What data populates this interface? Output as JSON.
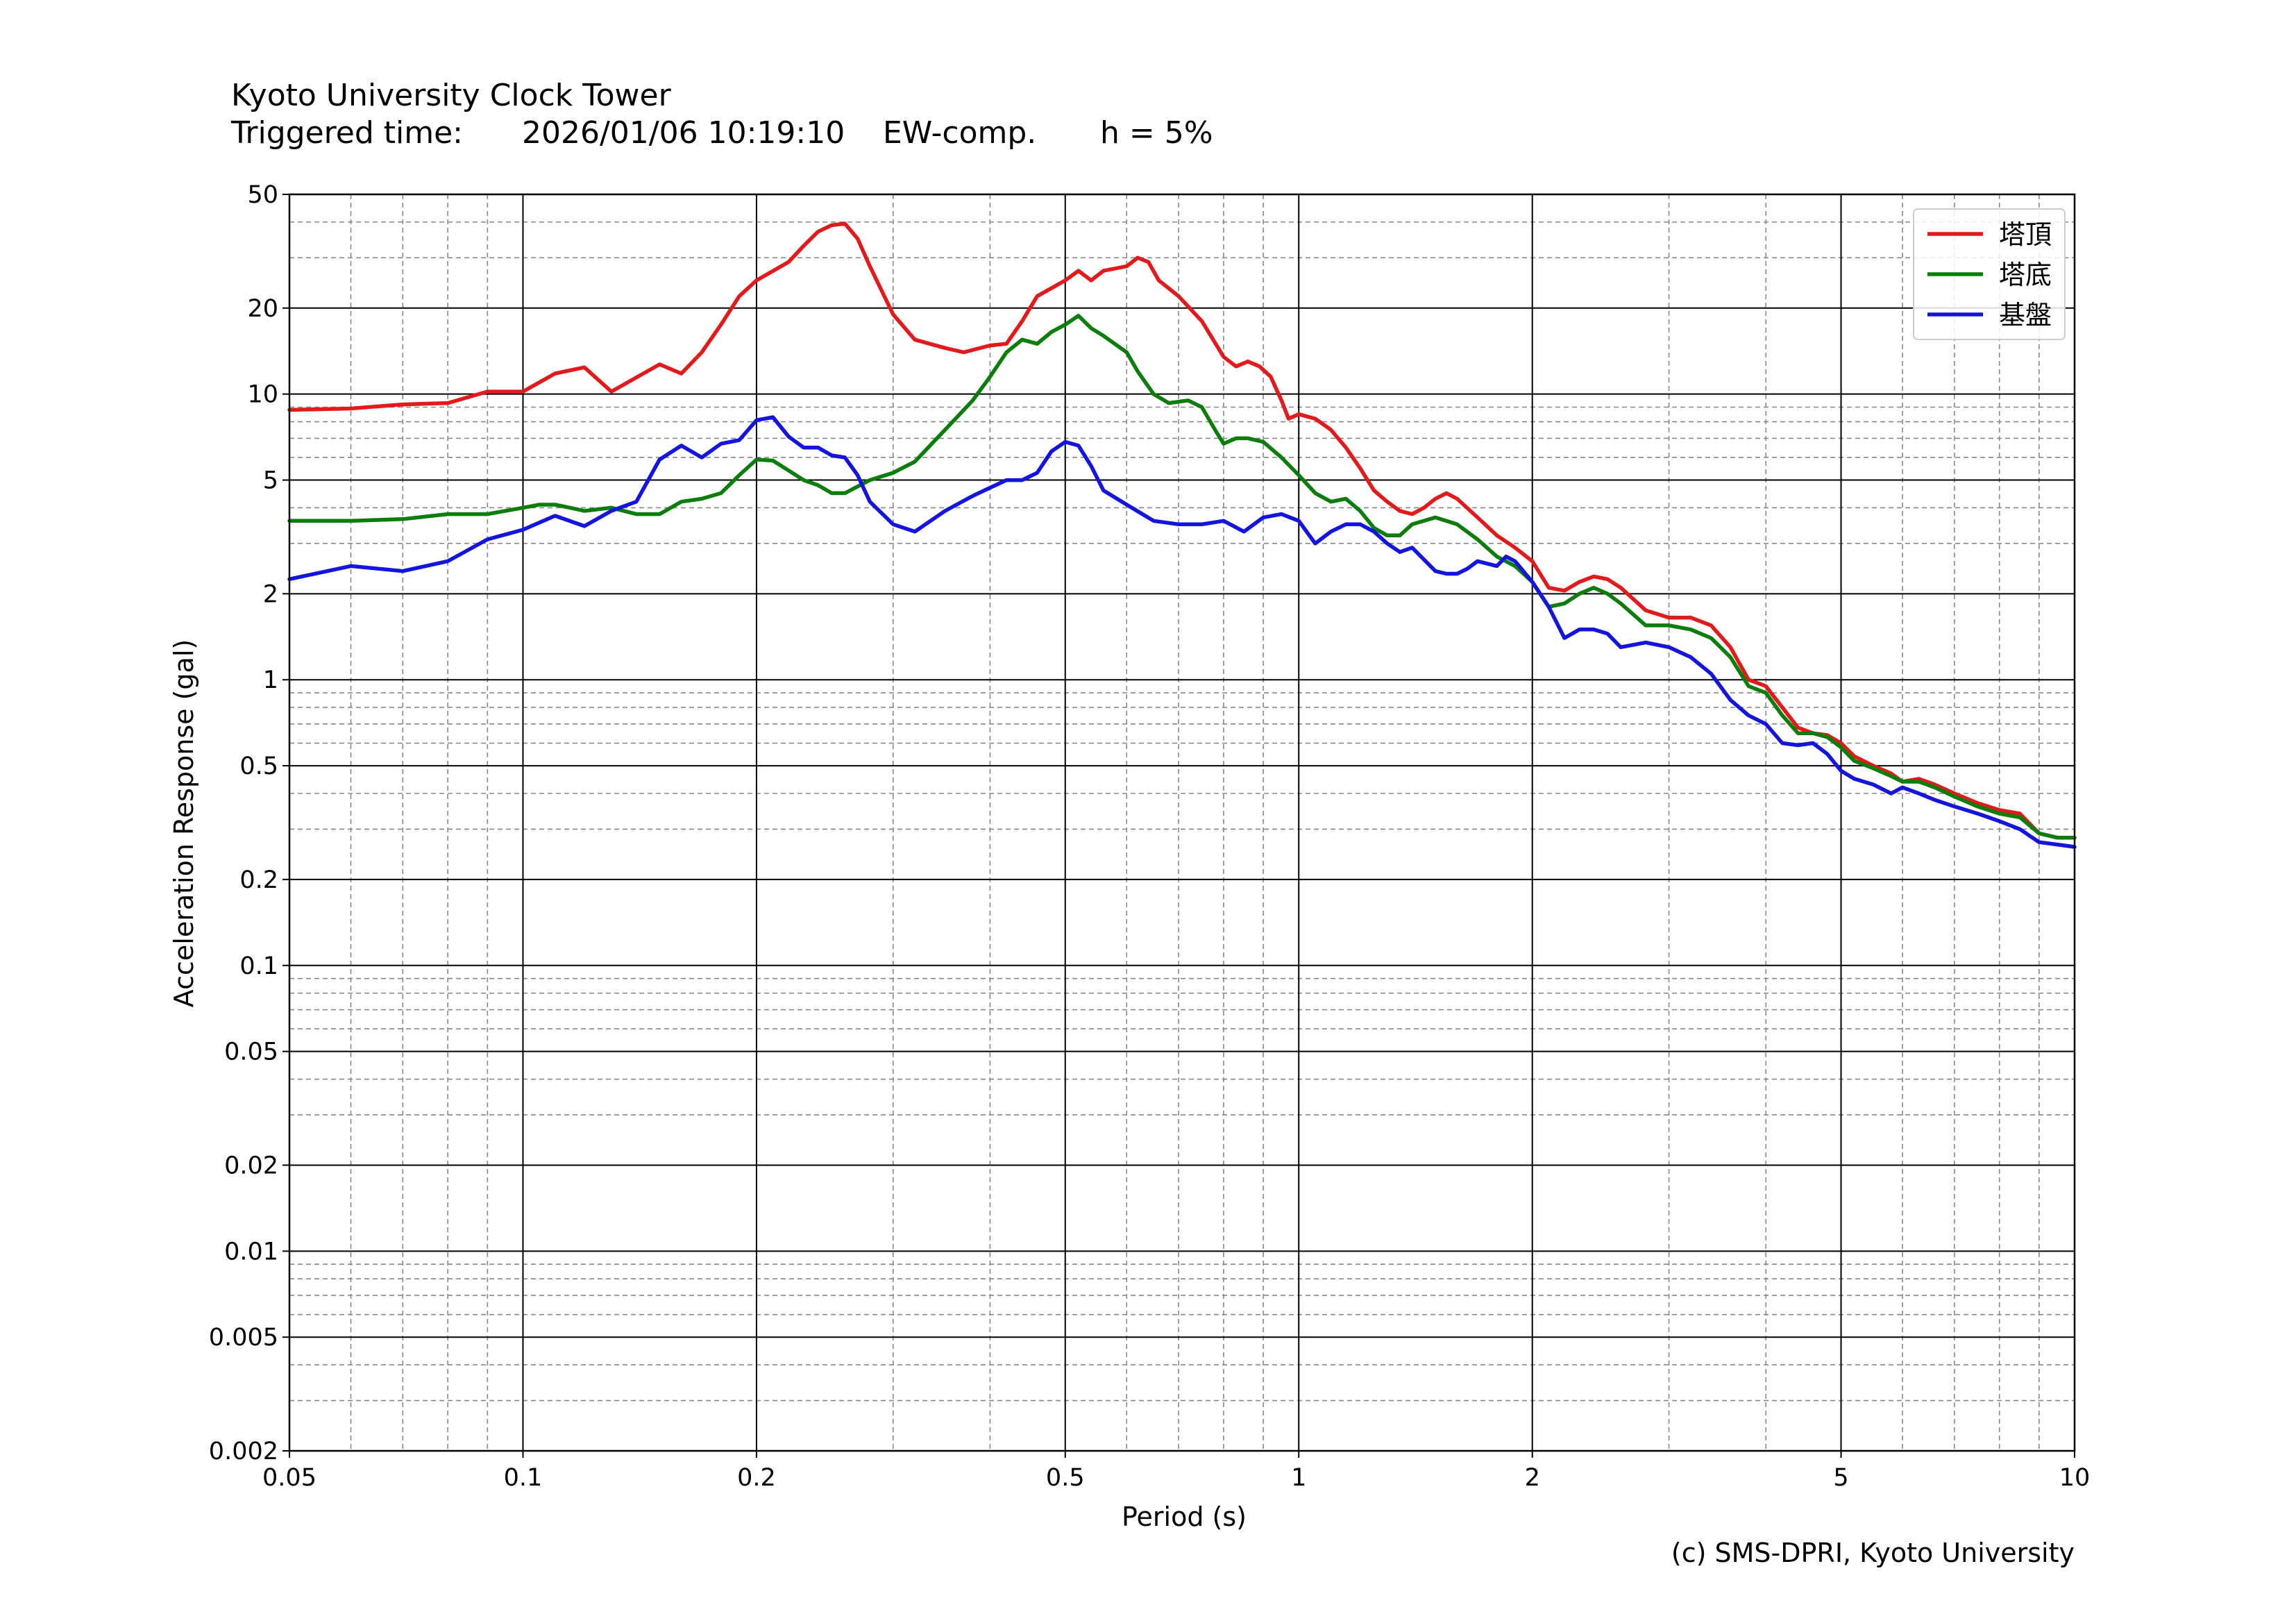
{
  "title": {
    "line1": "Kyoto University Clock Tower",
    "triggered_label": "Triggered time:",
    "triggered_value": "2026/01/06 10:19:10",
    "component": "EW-comp.",
    "damping": "h = 5%"
  },
  "credit": "(c) SMS-DPRI, Kyoto University",
  "chart_data": {
    "type": "line",
    "xlabel": "Period (s)",
    "ylabel": "Acceleration Response (gal)",
    "xscale": "log",
    "yscale": "log",
    "xlim": [
      0.05,
      10
    ],
    "ylim": [
      0.002,
      50
    ],
    "grid": true,
    "legend_position": "top-right",
    "x_ticks": [
      {
        "value": 0.05,
        "label": "0.05"
      },
      {
        "value": 0.1,
        "label": "0.1"
      },
      {
        "value": 0.2,
        "label": "0.2"
      },
      {
        "value": 0.5,
        "label": "0.5"
      },
      {
        "value": 1,
        "label": "1"
      },
      {
        "value": 2,
        "label": "2"
      },
      {
        "value": 5,
        "label": "5"
      },
      {
        "value": 10,
        "label": "10"
      }
    ],
    "y_ticks": [
      {
        "value": 0.002,
        "label": "0.002"
      },
      {
        "value": 0.005,
        "label": "0.005"
      },
      {
        "value": 0.01,
        "label": "0.01"
      },
      {
        "value": 0.02,
        "label": "0.02"
      },
      {
        "value": 0.05,
        "label": "0.05"
      },
      {
        "value": 0.1,
        "label": "0.1"
      },
      {
        "value": 0.2,
        "label": "0.2"
      },
      {
        "value": 0.5,
        "label": "0.5"
      },
      {
        "value": 1,
        "label": "1"
      },
      {
        "value": 2,
        "label": "2"
      },
      {
        "value": 5,
        "label": "5"
      },
      {
        "value": 10,
        "label": "10"
      },
      {
        "value": 20,
        "label": "20"
      },
      {
        "value": 50,
        "label": "50"
      }
    ],
    "series": [
      {
        "name": "塔頂",
        "color": "#e31a1c",
        "points": [
          [
            0.05,
            8.8
          ],
          [
            0.06,
            8.9
          ],
          [
            0.07,
            9.2
          ],
          [
            0.08,
            9.3
          ],
          [
            0.09,
            10.2
          ],
          [
            0.1,
            10.2
          ],
          [
            0.11,
            11.8
          ],
          [
            0.12,
            12.4
          ],
          [
            0.13,
            10.2
          ],
          [
            0.15,
            12.7
          ],
          [
            0.16,
            11.8
          ],
          [
            0.17,
            14
          ],
          [
            0.18,
            17.5
          ],
          [
            0.19,
            22
          ],
          [
            0.2,
            25
          ],
          [
            0.22,
            29
          ],
          [
            0.23,
            33
          ],
          [
            0.24,
            37
          ],
          [
            0.25,
            39
          ],
          [
            0.26,
            39.5
          ],
          [
            0.27,
            35
          ],
          [
            0.28,
            28
          ],
          [
            0.3,
            19
          ],
          [
            0.32,
            15.5
          ],
          [
            0.35,
            14.5
          ],
          [
            0.37,
            14
          ],
          [
            0.4,
            14.8
          ],
          [
            0.42,
            15
          ],
          [
            0.44,
            18
          ],
          [
            0.46,
            22
          ],
          [
            0.5,
            25
          ],
          [
            0.52,
            27
          ],
          [
            0.54,
            25
          ],
          [
            0.56,
            27
          ],
          [
            0.6,
            28
          ],
          [
            0.62,
            30
          ],
          [
            0.64,
            29
          ],
          [
            0.66,
            25
          ],
          [
            0.7,
            22
          ],
          [
            0.75,
            18
          ],
          [
            0.8,
            13.5
          ],
          [
            0.83,
            12.5
          ],
          [
            0.86,
            13
          ],
          [
            0.89,
            12.5
          ],
          [
            0.92,
            11.5
          ],
          [
            0.95,
            9.5
          ],
          [
            0.97,
            8.2
          ],
          [
            1.0,
            8.5
          ],
          [
            1.05,
            8.2
          ],
          [
            1.1,
            7.5
          ],
          [
            1.15,
            6.5
          ],
          [
            1.2,
            5.5
          ],
          [
            1.25,
            4.6
          ],
          [
            1.3,
            4.2
          ],
          [
            1.35,
            3.9
          ],
          [
            1.4,
            3.8
          ],
          [
            1.45,
            4
          ],
          [
            1.5,
            4.3
          ],
          [
            1.55,
            4.5
          ],
          [
            1.6,
            4.3
          ],
          [
            1.7,
            3.7
          ],
          [
            1.8,
            3.2
          ],
          [
            1.9,
            2.9
          ],
          [
            2.0,
            2.6
          ],
          [
            2.1,
            2.1
          ],
          [
            2.2,
            2.05
          ],
          [
            2.3,
            2.2
          ],
          [
            2.4,
            2.3
          ],
          [
            2.5,
            2.25
          ],
          [
            2.6,
            2.1
          ],
          [
            2.8,
            1.75
          ],
          [
            3.0,
            1.65
          ],
          [
            3.2,
            1.65
          ],
          [
            3.4,
            1.55
          ],
          [
            3.6,
            1.3
          ],
          [
            3.8,
            1.0
          ],
          [
            4.0,
            0.95
          ],
          [
            4.2,
            0.8
          ],
          [
            4.4,
            0.68
          ],
          [
            4.6,
            0.65
          ],
          [
            4.8,
            0.64
          ],
          [
            5.0,
            0.6
          ],
          [
            5.2,
            0.54
          ],
          [
            5.5,
            0.5
          ],
          [
            5.8,
            0.47
          ],
          [
            6.0,
            0.44
          ],
          [
            6.3,
            0.45
          ],
          [
            6.6,
            0.43
          ],
          [
            7.0,
            0.4
          ],
          [
            7.5,
            0.37
          ],
          [
            8.0,
            0.35
          ],
          [
            8.5,
            0.34
          ],
          [
            9.0,
            0.29
          ],
          [
            9.5,
            0.28
          ],
          [
            10.0,
            0.28
          ]
        ]
      },
      {
        "name": "塔底",
        "color": "#0b7d0b",
        "points": [
          [
            0.05,
            3.6
          ],
          [
            0.06,
            3.6
          ],
          [
            0.07,
            3.65
          ],
          [
            0.08,
            3.8
          ],
          [
            0.09,
            3.8
          ],
          [
            0.1,
            4.0
          ],
          [
            0.105,
            4.1
          ],
          [
            0.11,
            4.1
          ],
          [
            0.115,
            4.0
          ],
          [
            0.12,
            3.9
          ],
          [
            0.13,
            4.0
          ],
          [
            0.14,
            3.8
          ],
          [
            0.15,
            3.8
          ],
          [
            0.16,
            4.2
          ],
          [
            0.17,
            4.3
          ],
          [
            0.18,
            4.5
          ],
          [
            0.19,
            5.2
          ],
          [
            0.2,
            5.9
          ],
          [
            0.21,
            5.85
          ],
          [
            0.22,
            5.4
          ],
          [
            0.23,
            5.0
          ],
          [
            0.24,
            4.8
          ],
          [
            0.25,
            4.5
          ],
          [
            0.26,
            4.5
          ],
          [
            0.28,
            5.0
          ],
          [
            0.3,
            5.3
          ],
          [
            0.32,
            5.8
          ],
          [
            0.35,
            7.5
          ],
          [
            0.38,
            9.5
          ],
          [
            0.4,
            11.5
          ],
          [
            0.42,
            14
          ],
          [
            0.44,
            15.5
          ],
          [
            0.46,
            15
          ],
          [
            0.48,
            16.5
          ],
          [
            0.5,
            17.5
          ],
          [
            0.52,
            18.8
          ],
          [
            0.54,
            17
          ],
          [
            0.56,
            16
          ],
          [
            0.6,
            14
          ],
          [
            0.62,
            12
          ],
          [
            0.65,
            10
          ],
          [
            0.68,
            9.3
          ],
          [
            0.72,
            9.5
          ],
          [
            0.75,
            9
          ],
          [
            0.78,
            7.5
          ],
          [
            0.8,
            6.7
          ],
          [
            0.83,
            7
          ],
          [
            0.86,
            7
          ],
          [
            0.9,
            6.8
          ],
          [
            0.95,
            6
          ],
          [
            1.0,
            5.2
          ],
          [
            1.05,
            4.5
          ],
          [
            1.1,
            4.2
          ],
          [
            1.15,
            4.3
          ],
          [
            1.2,
            3.9
          ],
          [
            1.25,
            3.4
          ],
          [
            1.3,
            3.2
          ],
          [
            1.35,
            3.2
          ],
          [
            1.4,
            3.5
          ],
          [
            1.5,
            3.7
          ],
          [
            1.6,
            3.5
          ],
          [
            1.7,
            3.1
          ],
          [
            1.8,
            2.7
          ],
          [
            1.9,
            2.5
          ],
          [
            2.0,
            2.2
          ],
          [
            2.1,
            1.8
          ],
          [
            2.2,
            1.85
          ],
          [
            2.3,
            2.0
          ],
          [
            2.4,
            2.1
          ],
          [
            2.5,
            2.0
          ],
          [
            2.6,
            1.85
          ],
          [
            2.8,
            1.55
          ],
          [
            3.0,
            1.55
          ],
          [
            3.2,
            1.5
          ],
          [
            3.4,
            1.4
          ],
          [
            3.6,
            1.2
          ],
          [
            3.8,
            0.95
          ],
          [
            4.0,
            0.9
          ],
          [
            4.2,
            0.75
          ],
          [
            4.4,
            0.65
          ],
          [
            4.6,
            0.65
          ],
          [
            4.8,
            0.63
          ],
          [
            5.0,
            0.58
          ],
          [
            5.2,
            0.52
          ],
          [
            5.5,
            0.49
          ],
          [
            5.8,
            0.46
          ],
          [
            6.0,
            0.44
          ],
          [
            6.3,
            0.44
          ],
          [
            6.6,
            0.42
          ],
          [
            7.0,
            0.39
          ],
          [
            7.5,
            0.36
          ],
          [
            8.0,
            0.34
          ],
          [
            8.5,
            0.33
          ],
          [
            9.0,
            0.29
          ],
          [
            9.5,
            0.28
          ],
          [
            10.0,
            0.28
          ]
        ]
      },
      {
        "name": "基盤",
        "color": "#1414e0",
        "points": [
          [
            0.05,
            2.25
          ],
          [
            0.06,
            2.5
          ],
          [
            0.07,
            2.4
          ],
          [
            0.08,
            2.6
          ],
          [
            0.09,
            3.1
          ],
          [
            0.1,
            3.35
          ],
          [
            0.11,
            3.75
          ],
          [
            0.12,
            3.45
          ],
          [
            0.13,
            3.9
          ],
          [
            0.14,
            4.2
          ],
          [
            0.15,
            5.9
          ],
          [
            0.16,
            6.6
          ],
          [
            0.17,
            6.0
          ],
          [
            0.18,
            6.7
          ],
          [
            0.19,
            6.9
          ],
          [
            0.2,
            8.1
          ],
          [
            0.21,
            8.3
          ],
          [
            0.22,
            7.1
          ],
          [
            0.23,
            6.5
          ],
          [
            0.24,
            6.5
          ],
          [
            0.25,
            6.1
          ],
          [
            0.26,
            6.0
          ],
          [
            0.27,
            5.2
          ],
          [
            0.28,
            4.2
          ],
          [
            0.3,
            3.5
          ],
          [
            0.32,
            3.3
          ],
          [
            0.35,
            3.9
          ],
          [
            0.38,
            4.4
          ],
          [
            0.4,
            4.7
          ],
          [
            0.42,
            5.0
          ],
          [
            0.44,
            5.0
          ],
          [
            0.46,
            5.3
          ],
          [
            0.48,
            6.3
          ],
          [
            0.5,
            6.8
          ],
          [
            0.52,
            6.6
          ],
          [
            0.54,
            5.6
          ],
          [
            0.56,
            4.6
          ],
          [
            0.6,
            4.1
          ],
          [
            0.65,
            3.6
          ],
          [
            0.7,
            3.5
          ],
          [
            0.75,
            3.5
          ],
          [
            0.8,
            3.6
          ],
          [
            0.85,
            3.3
          ],
          [
            0.9,
            3.7
          ],
          [
            0.95,
            3.8
          ],
          [
            1.0,
            3.6
          ],
          [
            1.05,
            3.0
          ],
          [
            1.1,
            3.3
          ],
          [
            1.15,
            3.5
          ],
          [
            1.2,
            3.5
          ],
          [
            1.25,
            3.3
          ],
          [
            1.3,
            3.0
          ],
          [
            1.35,
            2.8
          ],
          [
            1.4,
            2.9
          ],
          [
            1.5,
            2.4
          ],
          [
            1.55,
            2.35
          ],
          [
            1.6,
            2.35
          ],
          [
            1.65,
            2.45
          ],
          [
            1.7,
            2.6
          ],
          [
            1.8,
            2.5
          ],
          [
            1.85,
            2.7
          ],
          [
            1.9,
            2.6
          ],
          [
            2.0,
            2.2
          ],
          [
            2.1,
            1.8
          ],
          [
            2.2,
            1.4
          ],
          [
            2.3,
            1.5
          ],
          [
            2.4,
            1.5
          ],
          [
            2.5,
            1.45
          ],
          [
            2.6,
            1.3
          ],
          [
            2.8,
            1.35
          ],
          [
            3.0,
            1.3
          ],
          [
            3.2,
            1.2
          ],
          [
            3.4,
            1.05
          ],
          [
            3.6,
            0.85
          ],
          [
            3.8,
            0.75
          ],
          [
            4.0,
            0.7
          ],
          [
            4.2,
            0.6
          ],
          [
            4.4,
            0.59
          ],
          [
            4.6,
            0.6
          ],
          [
            4.8,
            0.55
          ],
          [
            5.0,
            0.48
          ],
          [
            5.2,
            0.45
          ],
          [
            5.5,
            0.43
          ],
          [
            5.8,
            0.4
          ],
          [
            6.0,
            0.42
          ],
          [
            6.3,
            0.4
          ],
          [
            6.6,
            0.38
          ],
          [
            7.0,
            0.36
          ],
          [
            7.5,
            0.34
          ],
          [
            8.0,
            0.32
          ],
          [
            8.5,
            0.3
          ],
          [
            9.0,
            0.27
          ],
          [
            9.5,
            0.265
          ],
          [
            10.0,
            0.26
          ]
        ]
      }
    ]
  }
}
